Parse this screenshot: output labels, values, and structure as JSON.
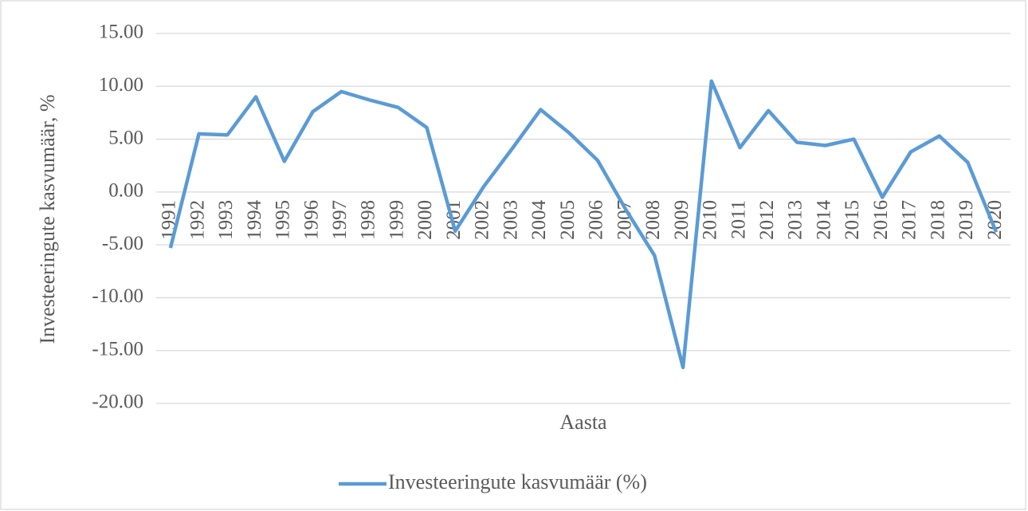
{
  "chart_data": {
    "type": "line",
    "x_label": "Aasta",
    "y_label": "Investeeringute kasvumäär, %",
    "categories": [
      "1991",
      "1992",
      "1993",
      "1994",
      "1995",
      "1996",
      "1997",
      "1998",
      "1999",
      "2000",
      "2001",
      "2002",
      "2003",
      "2004",
      "2005",
      "2006",
      "2007",
      "2008",
      "2009",
      "2010",
      "2011",
      "2012",
      "2013",
      "2014",
      "2015",
      "2016",
      "2017",
      "2018",
      "2019",
      "2020"
    ],
    "series": [
      {
        "name": "Investeeringute kasvumäär (%)",
        "color": "#5b9bd5",
        "values": [
          -5.3,
          5.5,
          5.4,
          9.0,
          2.9,
          7.6,
          9.5,
          8.7,
          8.0,
          6.1,
          -3.7,
          0.5,
          4.1,
          7.8,
          5.6,
          3.0,
          -1.7,
          -6.0,
          -16.6,
          10.5,
          4.2,
          7.7,
          4.7,
          4.4,
          5.0,
          -0.5,
          3.8,
          5.3,
          2.8,
          -3.8
        ]
      }
    ],
    "ylim": [
      -20,
      15
    ],
    "yticks": [
      {
        "value": -20,
        "label": "-20.00"
      },
      {
        "value": -15,
        "label": "-15.00"
      },
      {
        "value": -10,
        "label": "-10.00"
      },
      {
        "value": -5,
        "label": "-5.00"
      },
      {
        "value": 0,
        "label": "0.00"
      },
      {
        "value": 5,
        "label": "5.00"
      },
      {
        "value": 10,
        "label": "10.00"
      },
      {
        "value": 15,
        "label": "15.00"
      }
    ],
    "grid": true,
    "legend": "bottom"
  }
}
